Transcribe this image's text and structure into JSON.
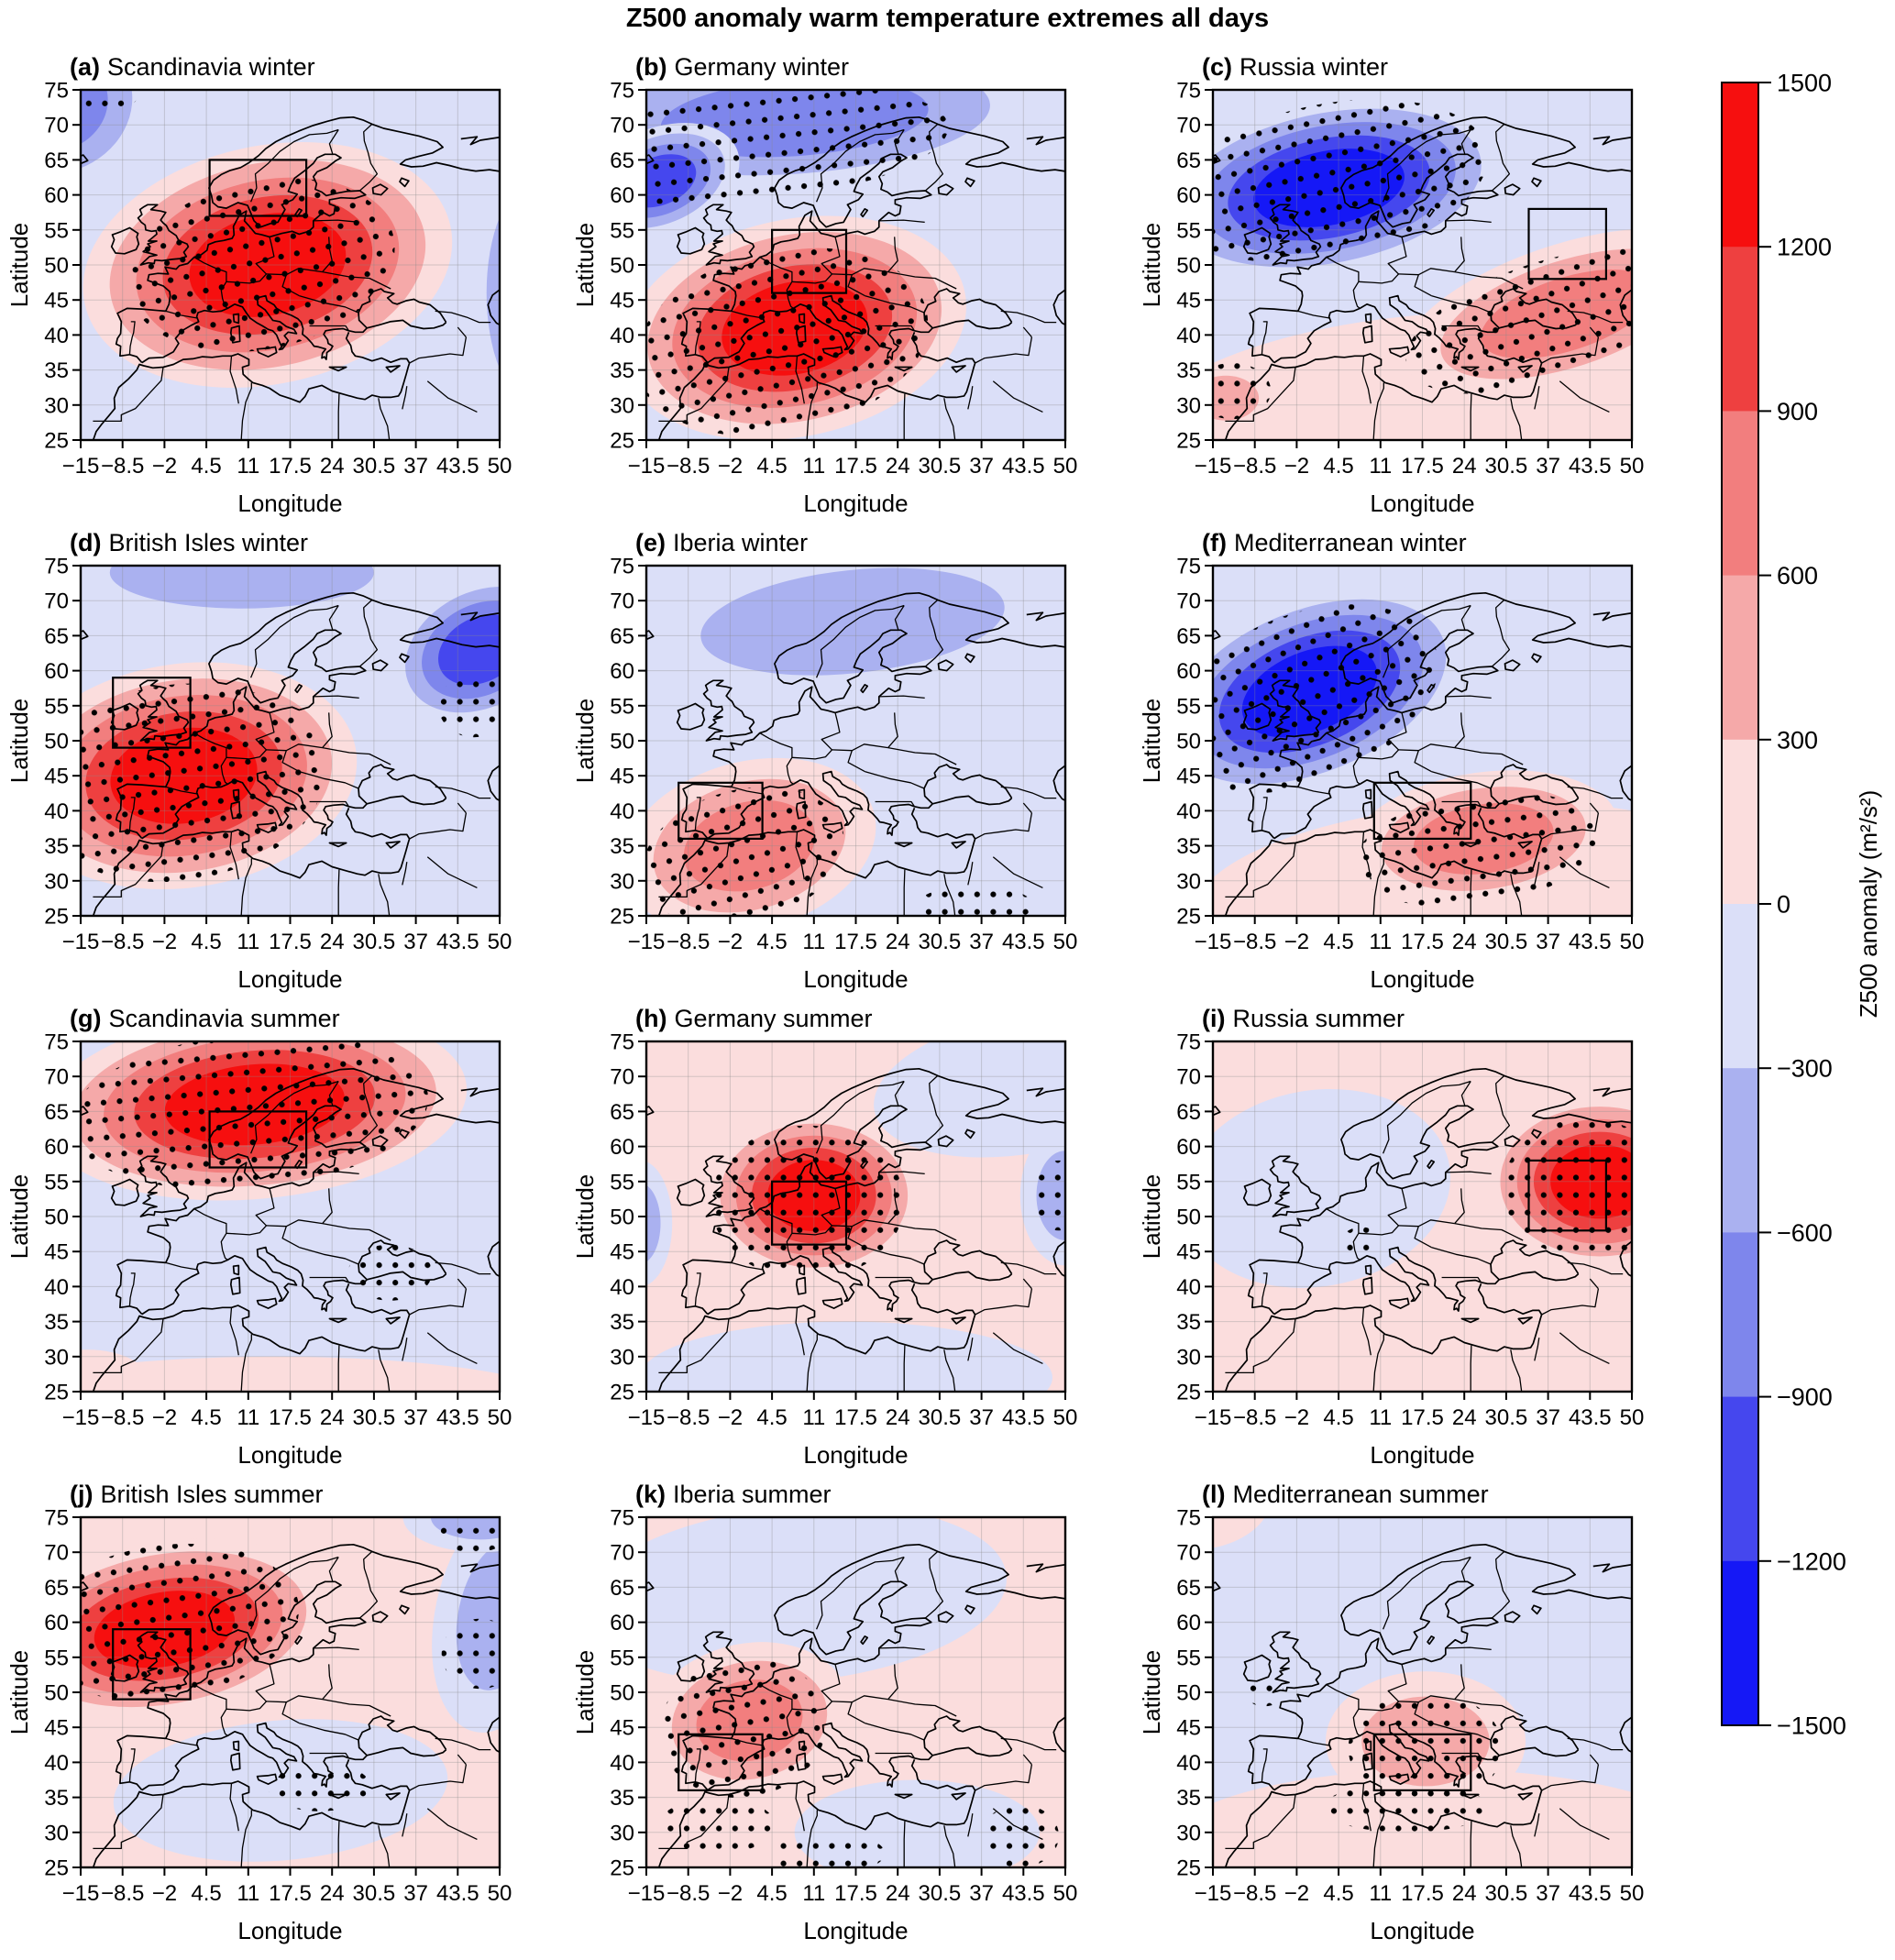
{
  "figure_title": "Z500 anomaly warm temperature extremes all days",
  "chart_data": {
    "type": "heatmap",
    "title": "Z500 anomaly warm temperature extremes all days",
    "layout": {
      "rows": 4,
      "cols": 3,
      "grid": true,
      "legend_position": "right-colorbar"
    },
    "axes": {
      "xlabel": "Longitude",
      "ylabel": "Latitude",
      "xlim": [
        -15,
        50
      ],
      "ylim": [
        25,
        75
      ],
      "xticks": [
        -15,
        -8.5,
        -2,
        4.5,
        11,
        17.5,
        24,
        30.5,
        37,
        43.5,
        50
      ],
      "yticks": [
        25,
        30,
        35,
        40,
        45,
        50,
        55,
        60,
        65,
        70,
        75
      ],
      "grid": true
    },
    "colorbar": {
      "label": "Z500 anomaly (m²/s²)",
      "ticks": [
        1500,
        1200,
        900,
        600,
        300,
        0,
        -300,
        -600,
        -900,
        -1200,
        -1500
      ],
      "colors_top_to_bottom": [
        "#f60f0f",
        "#ee4040",
        "#f27e7e",
        "#f5a9a9",
        "#fbdddd",
        "#dbdff8",
        "#aab1f0",
        "#7e86ec",
        "#4547ee",
        "#1518f6"
      ]
    },
    "panels": [
      {
        "id": "a",
        "label": "(a)",
        "title": "Scandinavia winter",
        "region": "Scandinavia",
        "season": "winter",
        "base": "#dbdff8",
        "region_box": {
          "lon_min": 5,
          "lon_max": 20,
          "lat_min": 57,
          "lat_max": 65
        },
        "anomalies": [
          {
            "sign": "negative",
            "lon": -19,
            "lat": 73,
            "rx": 16,
            "ry": 13,
            "rot": -20,
            "levels": 3
          },
          {
            "sign": "negative",
            "lon": 55,
            "lat": 46,
            "rx": 11,
            "ry": 24,
            "rot": 0,
            "levels": 2
          },
          {
            "sign": "positive",
            "lon": 14,
            "lat": 50,
            "rx": 29,
            "ry": 17,
            "rot": -12,
            "levels": 5
          }
        ],
        "stippling": [
          {
            "lon": 13,
            "lat": 50,
            "rx": 21,
            "ry": 12,
            "rot": -12
          },
          {
            "lon": -15,
            "lat": 74.5,
            "rx": 9,
            "ry": 3.5,
            "rot": 0
          }
        ]
      },
      {
        "id": "b",
        "label": "(b)",
        "title": "Germany winter",
        "region": "Germany",
        "season": "winter",
        "base": "#dbdff8",
        "region_box": {
          "lon_min": 4.5,
          "lon_max": 16,
          "lat_min": 46,
          "lat_max": 55
        },
        "anomalies": [
          {
            "sign": "negative",
            "lon": 8,
            "lat": 71,
            "rx": 40,
            "ry": 10.5,
            "rot": -4,
            "levels": 3
          },
          {
            "sign": "negative",
            "lon": -13,
            "lat": 62,
            "rx": 13,
            "ry": 7.5,
            "rot": -22,
            "levels": 4
          },
          {
            "sign": "positive",
            "lon": 8,
            "lat": 41,
            "rx": 27,
            "ry": 15.5,
            "rot": -12,
            "levels": 5
          }
        ],
        "stippling": [
          {
            "lon": 6,
            "lat": 39,
            "rx": 23,
            "ry": 13,
            "rot": -12
          },
          {
            "lon": 2,
            "lat": 67,
            "rx": 30,
            "ry": 8,
            "rot": -6
          }
        ]
      },
      {
        "id": "c",
        "label": "(c)",
        "title": "Russia winter",
        "region": "Russia",
        "season": "winter",
        "base": "#dbdff8",
        "region_box": {
          "lon_min": 34,
          "lon_max": 46,
          "lat_min": 48,
          "lat_max": 58
        },
        "anomalies": [
          {
            "sign": "positive",
            "lon": 20,
            "lat": 27,
            "rx": 48,
            "ry": 16,
            "rot": -4,
            "levels": 1
          },
          {
            "sign": "positive",
            "lon": 40,
            "lat": 43,
            "rx": 27,
            "ry": 10,
            "rot": -18,
            "levels": 3
          },
          {
            "sign": "positive",
            "lon": -13,
            "lat": 31,
            "rx": 8,
            "ry": 5,
            "rot": 0,
            "levels": 2
          },
          {
            "sign": "negative",
            "lon": 3,
            "lat": 61,
            "rx": 28,
            "ry": 12.5,
            "rot": -11,
            "levels": 5
          }
        ],
        "stippling": [
          {
            "lon": 3,
            "lat": 62,
            "rx": 25,
            "ry": 11,
            "rot": -11
          },
          {
            "lon": 37,
            "lat": 42,
            "rx": 23,
            "ry": 8.5,
            "rot": -18
          },
          {
            "lon": -12,
            "lat": 32,
            "rx": 6,
            "ry": 4,
            "rot": 0
          }
        ]
      },
      {
        "id": "d",
        "label": "(d)",
        "title": "British Isles winter",
        "region": "British Isles",
        "season": "winter",
        "base": "#dbdff8",
        "region_box": {
          "lon_min": -10,
          "lon_max": 2,
          "lat_min": 49,
          "lat_max": 59
        },
        "anomalies": [
          {
            "sign": "negative",
            "lon": 10,
            "lat": 74,
            "rx": 32,
            "ry": 8,
            "rot": 0,
            "levels": 2
          },
          {
            "sign": "negative",
            "lon": 47,
            "lat": 63,
            "rx": 15,
            "ry": 10,
            "rot": -28,
            "levels": 4
          },
          {
            "sign": "positive",
            "lon": 1,
            "lat": 45,
            "rx": 27,
            "ry": 16,
            "rot": -8,
            "levels": 5
          }
        ],
        "stippling": [
          {
            "lon": 0,
            "lat": 44,
            "rx": 23,
            "ry": 14,
            "rot": -8
          },
          {
            "lon": 46,
            "lat": 55,
            "rx": 5.5,
            "ry": 4.5,
            "rot": 0
          }
        ]
      },
      {
        "id": "e",
        "label": "(e)",
        "title": "Iberia winter",
        "region": "Iberia",
        "season": "winter",
        "base": "#dbdff8",
        "region_box": {
          "lon_min": -10,
          "lon_max": 3,
          "lat_min": 36,
          "lat_max": 44
        },
        "anomalies": [
          {
            "sign": "negative",
            "lon": 17,
            "lat": 67,
            "rx": 37,
            "ry": 11.5,
            "rot": -6,
            "levels": 2
          },
          {
            "sign": "positive",
            "lon": 1,
            "lat": 35,
            "rx": 20,
            "ry": 12,
            "rot": -15,
            "levels": 3
          }
        ],
        "stippling": [
          {
            "lon": 0,
            "lat": 33.5,
            "rx": 16,
            "ry": 9.5,
            "rot": -15
          },
          {
            "lon": 36,
            "lat": 26.5,
            "rx": 9,
            "ry": 2.8,
            "rot": 0
          }
        ]
      },
      {
        "id": "f",
        "label": "(f)",
        "title": "Mediterranean winter",
        "region": "Mediterranean",
        "season": "winter",
        "base": "#dbdff8",
        "region_box": {
          "lon_min": 10,
          "lon_max": 25,
          "lat_min": 36,
          "lat_max": 44
        },
        "anomalies": [
          {
            "sign": "positive",
            "lon": 25,
            "lat": 28,
            "rx": 43,
            "ry": 13,
            "rot": -4,
            "levels": 1
          },
          {
            "sign": "positive",
            "lon": 27,
            "lat": 36,
            "rx": 21,
            "ry": 9.5,
            "rot": -8,
            "levels": 3
          },
          {
            "sign": "negative",
            "lon": 0,
            "lat": 57,
            "rx": 26,
            "ry": 13.5,
            "rot": -22,
            "levels": 5
          }
        ],
        "stippling": [
          {
            "lon": -1,
            "lat": 56,
            "rx": 22,
            "ry": 12,
            "rot": -22
          },
          {
            "lon": 26,
            "lat": 34.5,
            "rx": 19,
            "ry": 8,
            "rot": -8
          }
        ]
      },
      {
        "id": "g",
        "label": "(g)",
        "title": "Scandinavia summer",
        "region": "Scandinavia",
        "season": "summer",
        "base": "#dbdff8",
        "region_box": {
          "lon_min": 5,
          "lon_max": 20,
          "lat_min": 57,
          "lat_max": 65
        },
        "anomalies": [
          {
            "sign": "positive",
            "lon": 15,
            "lat": 23,
            "rx": 46,
            "ry": 7,
            "rot": 0,
            "levels": 1
          },
          {
            "sign": "positive",
            "lon": -14,
            "lat": 26,
            "rx": 10,
            "ry": 5,
            "rot": 0,
            "levels": 1
          },
          {
            "sign": "positive",
            "lon": 12,
            "lat": 66,
            "rx": 33,
            "ry": 13.5,
            "rot": -5,
            "levels": 5
          }
        ],
        "stippling": [
          {
            "lon": 11,
            "lat": 65,
            "rx": 28,
            "ry": 11,
            "rot": -5
          },
          {
            "lon": 33,
            "lat": 42,
            "rx": 6.5,
            "ry": 4,
            "rot": 0
          }
        ]
      },
      {
        "id": "h",
        "label": "(h)",
        "title": "Germany summer",
        "region": "Germany",
        "season": "summer",
        "base": "#fbdddd",
        "region_box": {
          "lon_min": 4.5,
          "lon_max": 16,
          "lat_min": 46,
          "lat_max": 55
        },
        "anomalies": [
          {
            "sign": "negative",
            "lon": 44,
            "lat": 69,
            "rx": 24,
            "ry": 10,
            "rot": -10,
            "levels": 1
          },
          {
            "sign": "negative",
            "lon": 16,
            "lat": 27,
            "rx": 32,
            "ry": 8,
            "rot": 0,
            "levels": 1
          },
          {
            "sign": "negative",
            "lon": 50,
            "lat": 53,
            "rx": 7,
            "ry": 10,
            "rot": 0,
            "levels": 2
          },
          {
            "sign": "negative",
            "lon": -16,
            "lat": 49,
            "rx": 5,
            "ry": 9,
            "rot": 0,
            "levels": 2
          },
          {
            "sign": "positive",
            "lon": 11,
            "lat": 53,
            "rx": 17,
            "ry": 12,
            "rot": 0,
            "levels": 5
          }
        ],
        "stippling": [
          {
            "lon": 10,
            "lat": 52,
            "rx": 15,
            "ry": 11,
            "rot": 0
          },
          {
            "lon": 49,
            "lat": 53,
            "rx": 4,
            "ry": 5,
            "rot": 0
          }
        ]
      },
      {
        "id": "i",
        "label": "(i)",
        "title": "Russia summer",
        "region": "Russia",
        "season": "summer",
        "base": "#fbdddd",
        "region_box": {
          "lon_min": 34,
          "lon_max": 46,
          "lat_min": 48,
          "lat_max": 58
        },
        "anomalies": [
          {
            "sign": "negative",
            "lon": 1,
            "lat": 54,
            "rx": 21,
            "ry": 14,
            "rot": -10,
            "levels": 1
          },
          {
            "sign": "positive",
            "lon": 45,
            "lat": 55,
            "rx": 18,
            "ry": 12.5,
            "rot": 0,
            "levels": 5
          }
        ],
        "stippling": [
          {
            "lon": 43,
            "lat": 54,
            "rx": 13,
            "ry": 10,
            "rot": 0
          },
          {
            "lon": 8,
            "lat": 46.5,
            "rx": 3,
            "ry": 2,
            "rot": 0
          }
        ]
      },
      {
        "id": "j",
        "label": "(j)",
        "title": "British Isles summer",
        "region": "British Isles",
        "season": "summer",
        "base": "#fbdddd",
        "region_box": {
          "lon_min": -10,
          "lon_max": 2,
          "lat_min": 49,
          "lat_max": 59
        },
        "anomalies": [
          {
            "sign": "negative",
            "lon": 16,
            "lat": 36,
            "rx": 26,
            "ry": 10,
            "rot": -5,
            "levels": 1
          },
          {
            "sign": "negative",
            "lon": 50,
            "lat": 61,
            "rx": 10,
            "ry": 17,
            "rot": 12,
            "levels": 2
          },
          {
            "sign": "negative",
            "lon": 47,
            "lat": 75,
            "rx": 12,
            "ry": 5,
            "rot": 0,
            "levels": 2
          },
          {
            "sign": "positive",
            "lon": -2,
            "lat": 59,
            "rx": 26,
            "ry": 12.5,
            "rot": -10,
            "levels": 5
          }
        ],
        "stippling": [
          {
            "lon": -2,
            "lat": 60,
            "rx": 21,
            "ry": 11,
            "rot": -8
          },
          {
            "lon": 47,
            "lat": 55.5,
            "rx": 6,
            "ry": 5,
            "rot": 0
          },
          {
            "lon": 22,
            "lat": 36.5,
            "rx": 8,
            "ry": 3.5,
            "rot": 0
          },
          {
            "lon": 46,
            "lat": 73,
            "rx": 6,
            "ry": 3,
            "rot": 0
          }
        ]
      },
      {
        "id": "k",
        "label": "(k)",
        "title": "Iberia summer",
        "region": "Iberia",
        "season": "summer",
        "base": "#fbdddd",
        "region_box": {
          "lon_min": -10,
          "lon_max": 3,
          "lat_min": 36,
          "lat_max": 44
        },
        "anomalies": [
          {
            "sign": "negative",
            "lon": 8,
            "lat": 64,
            "rx": 33,
            "ry": 12.5,
            "rot": -5,
            "levels": 1
          },
          {
            "sign": "negative",
            "lon": 27,
            "lat": 30,
            "rx": 19,
            "ry": 7.5,
            "rot": 0,
            "levels": 1
          },
          {
            "sign": "positive",
            "lon": 1,
            "lat": 46,
            "rx": 16,
            "ry": 11,
            "rot": -12,
            "levels": 3
          }
        ],
        "stippling": [
          {
            "lon": 0,
            "lat": 45,
            "rx": 13,
            "ry": 10,
            "rot": -10
          },
          {
            "lon": -4,
            "lat": 31,
            "rx": 9,
            "ry": 4,
            "rot": 0
          },
          {
            "lon": 13,
            "lat": 27,
            "rx": 9,
            "ry": 3,
            "rot": 0
          },
          {
            "lon": 43,
            "lat": 29.5,
            "rx": 6,
            "ry": 4.5,
            "rot": 0
          }
        ]
      },
      {
        "id": "l",
        "label": "(l)",
        "title": "Mediterranean summer",
        "region": "Mediterranean",
        "season": "summer",
        "base": "#dbdff8",
        "region_box": {
          "lon_min": 10,
          "lon_max": 25,
          "lat_min": 36,
          "lat_max": 44
        },
        "anomalies": [
          {
            "sign": "positive",
            "lon": 20,
            "lat": 27.5,
            "rx": 43,
            "ry": 11.5,
            "rot": 0,
            "levels": 1
          },
          {
            "sign": "positive",
            "lon": -14,
            "lat": 75,
            "rx": 8,
            "ry": 4,
            "rot": -20,
            "levels": 1
          },
          {
            "sign": "positive",
            "lon": 18,
            "lat": 43,
            "rx": 15.5,
            "ry": 10,
            "rot": 0,
            "levels": 2
          }
        ],
        "stippling": [
          {
            "lon": 18,
            "lat": 42,
            "rx": 12,
            "ry": 8,
            "rot": 0
          },
          {
            "lon": 15,
            "lat": 33.5,
            "rx": 13,
            "ry": 3.5,
            "rot": 0
          },
          {
            "lon": -7,
            "lat": 50,
            "rx": 3,
            "ry": 2,
            "rot": 0
          }
        ]
      }
    ]
  }
}
